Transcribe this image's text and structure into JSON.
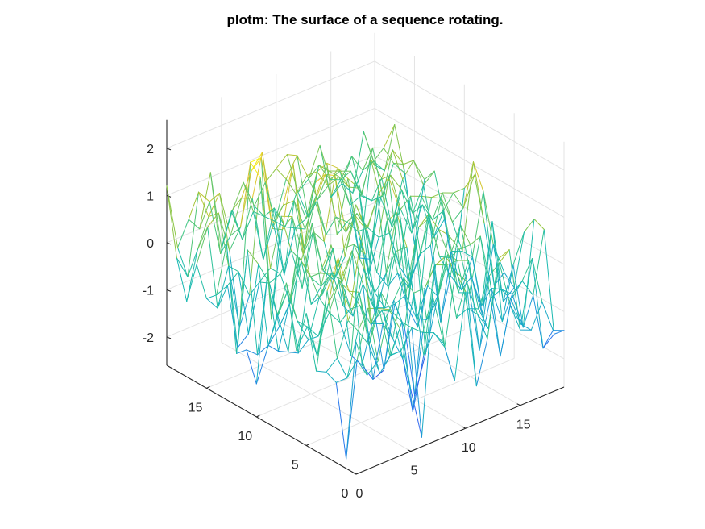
{
  "chart_data": {
    "type": "surface",
    "render": "mesh",
    "title": "plotm: The surface of a sequence rotating.",
    "xlabel": "",
    "ylabel": "",
    "zlabel": "",
    "xlim": [
      0,
      19
    ],
    "ylim": [
      0,
      19
    ],
    "zlim": [
      -2.6,
      2.6
    ],
    "grid": true,
    "colormap": "parula",
    "colormap_stops": [
      "#3e26a8",
      "#2c6bf5",
      "#1d9fd4",
      "#19b9b4",
      "#36c58a",
      "#9fc63a",
      "#e5c62e",
      "#f9fb0e"
    ],
    "view": {
      "azimuth": -37.5,
      "elevation": 30
    },
    "x_ticks": [
      0,
      5,
      10,
      15
    ],
    "x_tick_labels": [
      "0",
      "5",
      "10",
      "15"
    ],
    "y_ticks": [
      0,
      5,
      10,
      15
    ],
    "y_tick_labels": [
      "0",
      "5",
      "10",
      "15"
    ],
    "z_ticks": [
      -2,
      -1,
      0,
      1,
      2
    ],
    "z_tick_labels": [
      "-2",
      "-1",
      "0",
      "1",
      "2"
    ],
    "x": [
      0,
      1,
      2,
      3,
      4,
      5,
      6,
      7,
      8,
      9,
      10,
      11,
      12,
      13,
      14,
      15,
      16,
      17,
      18,
      19
    ],
    "y": [
      0,
      1,
      2,
      3,
      4,
      5,
      6,
      7,
      8,
      9,
      10,
      11,
      12,
      13,
      14,
      15,
      16,
      17,
      18,
      19
    ],
    "z": [
      [
        0.2,
        -0.6,
        -0.4,
        0.6,
        0.1,
        -1.3,
        -2.4,
        0.5,
        -0.6,
        -1.5,
        0.3,
        -1.8,
        -0.9,
        0.7,
        0.8,
        -1.0,
        -1.1,
        -0.6,
        -1.3,
        -1.4
      ],
      [
        -2.4,
        -0.4,
        0.6,
        0.5,
        -0.6,
        -0.6,
        -0.2,
        -0.4,
        -0.5,
        -0.9,
        0.6,
        0.3,
        -0.5,
        -0.9,
        0.4,
        -0.6,
        -1.1,
        0.2,
        -1.8,
        -1.6
      ],
      [
        -0.9,
        -0.9,
        0.0,
        -0.4,
        -1.1,
        -0.8,
        -0.2,
        -2.2,
        -1.1,
        0.7,
        0.8,
        -0.6,
        -0.5,
        -0.6,
        0.0,
        -1.8,
        -0.7,
        -0.4,
        -0.8,
        0.5
      ],
      [
        -0.8,
        -0.6,
        0.1,
        0.6,
        -0.5,
        0.4,
        -0.1,
        -1.2,
        0.1,
        0.1,
        0.5,
        0.4,
        0.4,
        0.3,
        -1.7,
        -0.7,
        -0.6,
        -0.8,
        -1.6,
        0.6
      ],
      [
        -0.9,
        0.7,
        1.3,
        0.5,
        0.1,
        -0.4,
        -0.2,
        -0.9,
        0.3,
        -2.3,
        -1.5,
        -0.5,
        0.4,
        -0.5,
        -0.6,
        0.5,
        -0.7,
        -1.5,
        -0.4,
        0.2
      ],
      [
        0.2,
        -0.8,
        0.2,
        0.6,
        -0.1,
        1.3,
        -0.6,
        -0.7,
        -0.3,
        -1.0,
        0.8,
        -1.0,
        -0.6,
        0.6,
        0.2,
        0.2,
        -1.2,
        0.5,
        -1.3,
        -1.1
      ],
      [
        -0.7,
        -0.3,
        -0.6,
        -0.2,
        -0.5,
        -1.3,
        -1.6,
        -2.0,
        -1.9,
        -0.6,
        -0.5,
        -1.1,
        -0.5,
        0.6,
        -0.1,
        0.5,
        -0.7,
        -1.6,
        -0.2,
        -0.9
      ],
      [
        0.6,
        -0.3,
        -0.8,
        0.0,
        0.4,
        0.2,
        0.7,
        -0.1,
        -0.7,
        -0.8,
        0.3,
        0.3,
        -1.5,
        0.8,
        -0.2,
        -0.7,
        -1.1,
        -0.5,
        0.8,
        -1.3
      ],
      [
        -0.3,
        0.2,
        -1.2,
        0.4,
        0.3,
        0.8,
        -0.1,
        -0.9,
        0.0,
        -0.6,
        -0.3,
        0.9,
        -1.2,
        0.4,
        0.5,
        -1.8,
        -0.4,
        -0.5,
        1.3,
        -0.1
      ],
      [
        -1.1,
        -0.4,
        -1.3,
        0.6,
        0.1,
        -0.2,
        0.0,
        -0.8,
        0.4,
        0.1,
        -1.3,
        0.6,
        -0.6,
        -1.0,
        -0.4,
        -0.3,
        0.6,
        0.0,
        0.2,
        0.8
      ],
      [
        -1.9,
        0.3,
        -1.4,
        -0.5,
        0.9,
        -0.7,
        -0.6,
        0.3,
        0.2,
        0.8,
        0.4,
        -0.6,
        -1.0,
        0.6,
        -1.1,
        -0.6,
        0.5,
        0.5,
        0.4,
        0.4
      ],
      [
        -1.3,
        -1.5,
        -1.4,
        -1.1,
        -0.7,
        0.1,
        0.8,
        -0.3,
        -0.6,
        -0.2,
        0.8,
        0.2,
        0.8,
        1.1,
        -0.9,
        0.5,
        0.4,
        -0.2,
        -0.1,
        -1.6
      ],
      [
        -1.5,
        0.6,
        0.2,
        -0.3,
        -0.2,
        0.2,
        -0.7,
        0.4,
        0.1,
        1.4,
        0.1,
        0.4,
        0.0,
        -0.3,
        -0.3,
        0.1,
        -0.5,
        0.0,
        -0.8,
        -0.5
      ],
      [
        0.7,
        -1.6,
        -1.4,
        -0.4,
        -0.2,
        0.8,
        0.7,
        -0.2,
        1.2,
        1.3,
        0.3,
        0.1,
        -0.2,
        -1.2,
        0.7,
        0.7,
        0.3,
        -0.3,
        0.2,
        0.4
      ],
      [
        -0.5,
        -0.4,
        -0.2,
        -0.8,
        1.6,
        -1.5,
        0.3,
        1.6,
        -0.3,
        0.6,
        -0.2,
        -0.3,
        0.8,
        0.5,
        -1.1,
        0.1,
        -0.6,
        0.3,
        0.6,
        0.1
      ],
      [
        -0.7,
        -1.0,
        -0.2,
        -1.6,
        1.8,
        1.8,
        0.2,
        0.6,
        0.6,
        -0.1,
        0.5,
        1.1,
        0.9,
        0.4,
        -1.2,
        0.8,
        0.3,
        0.8,
        0.4,
        -1.4
      ],
      [
        -0.1,
        0.6,
        0.8,
        -0.1,
        0.3,
        1.4,
        1.7,
        0.1,
        -1.1,
        -0.2,
        -0.1,
        0.8,
        0.4,
        0.5,
        -0.2,
        -0.1,
        -0.3,
        -0.3,
        0.3,
        0.0
      ],
      [
        -1.0,
        0.0,
        0.6,
        1.0,
        0.0,
        0.7,
        0.6,
        -0.8,
        0.2,
        -0.3,
        0.3,
        0.6,
        0.0,
        0.5,
        0.4,
        0.3,
        -0.3,
        0.6,
        0.5,
        0.9
      ],
      [
        -0.2,
        -0.7,
        1.0,
        0.7,
        -0.5,
        0.3,
        -0.4,
        0.1,
        -0.1,
        -0.3,
        0.5,
        0.9,
        -0.5,
        0.5,
        0.1,
        0.0,
        0.4,
        0.0,
        0.1,
        -0.2
      ],
      [
        1.2,
        -0.2,
        0.3,
        0.0,
        1.1,
        -0.6,
        0.1,
        0.6,
        0.0,
        0.4,
        0.6,
        0.8,
        -0.1,
        0.1,
        0.7,
        -0.5,
        -0.3,
        -0.6,
        0.6,
        -0.2
      ]
    ]
  }
}
